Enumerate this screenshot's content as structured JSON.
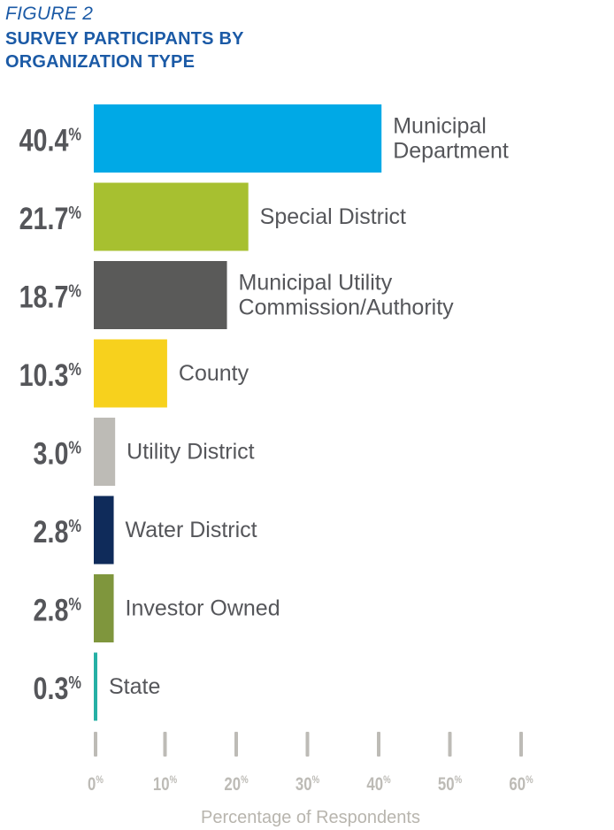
{
  "figure_label": "FIGURE 2",
  "chart_data": {
    "type": "bar",
    "orientation": "horizontal",
    "title": "SURVEY PARTICIPANTS BY ORGANIZATION TYPE",
    "xlabel": "Percentage of Respondents",
    "ylabel": "",
    "xlim": [
      0,
      60
    ],
    "x_ticks": [
      "0%",
      "10%",
      "20%",
      "30%",
      "40%",
      "50%",
      "60%"
    ],
    "grid": false,
    "categories": [
      "Municipal Department",
      "Special District",
      "Municipal Utility Commission/Authority",
      "County",
      "Utility District",
      "Water District",
      "Investor Owned",
      "State"
    ],
    "category_lines": [
      [
        "Municipal",
        "Department"
      ],
      [
        "Special District"
      ],
      [
        "Municipal Utility",
        "Commission/Authority"
      ],
      [
        "County"
      ],
      [
        "Utility District"
      ],
      [
        "Water District"
      ],
      [
        "Investor Owned"
      ],
      [
        "State"
      ]
    ],
    "values": [
      40.4,
      21.7,
      18.7,
      10.3,
      3.0,
      2.8,
      2.8,
      0.3
    ],
    "value_labels": [
      "40.4",
      "21.7",
      "18.7",
      "10.3",
      "3.0",
      "2.8",
      "2.8",
      "0.3"
    ],
    "value_suffix": "%",
    "colors": [
      "#00a9e6",
      "#a7c030",
      "#5a5a59",
      "#f7d11d",
      "#bdbbb6",
      "#0f2b5a",
      "#7f963d",
      "#26b0a5"
    ]
  }
}
